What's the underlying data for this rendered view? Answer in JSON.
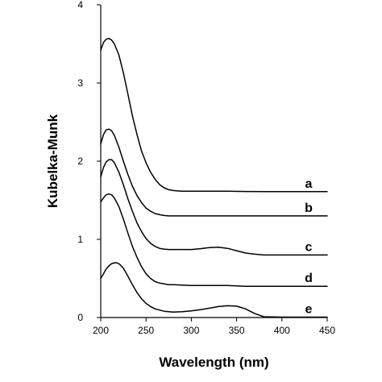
{
  "chart_data": {
    "type": "line",
    "title": "",
    "xlabel": "Wavelength (nm)",
    "ylabel": "Kubelka-Munk",
    "xlim": [
      200,
      450
    ],
    "ylim": [
      0,
      4
    ],
    "x_ticks": [
      200,
      250,
      300,
      350,
      400,
      450
    ],
    "y_ticks": [
      0,
      1,
      2,
      3,
      4
    ],
    "grid": false,
    "legend": "none",
    "series": [
      {
        "label": "a",
        "color": "#000000",
        "x": [
          200,
          203,
          206,
          209,
          212,
          215,
          220,
          225,
          230,
          235,
          240,
          245,
          250,
          255,
          260,
          265,
          270,
          275,
          280,
          285,
          290,
          300,
          320,
          340,
          360,
          380,
          400,
          450
        ],
        "y": [
          3.42,
          3.52,
          3.56,
          3.57,
          3.55,
          3.5,
          3.36,
          3.13,
          2.86,
          2.58,
          2.34,
          2.13,
          1.98,
          1.86,
          1.77,
          1.7,
          1.66,
          1.635,
          1.625,
          1.62,
          1.615,
          1.615,
          1.615,
          1.615,
          1.612,
          1.61,
          1.61,
          1.61
        ]
      },
      {
        "label": "b",
        "color": "#000000",
        "x": [
          200,
          203,
          206,
          209,
          212,
          215,
          220,
          225,
          230,
          235,
          240,
          245,
          250,
          255,
          260,
          265,
          270,
          275,
          280,
          290,
          300,
          350,
          400,
          450
        ],
        "y": [
          2.22,
          2.34,
          2.4,
          2.41,
          2.39,
          2.33,
          2.18,
          2.0,
          1.83,
          1.68,
          1.56,
          1.47,
          1.4,
          1.36,
          1.33,
          1.315,
          1.305,
          1.3,
          1.3,
          1.3,
          1.3,
          1.3,
          1.3,
          1.3
        ]
      },
      {
        "label": "c",
        "color": "#000000",
        "x": [
          200,
          203,
          206,
          209,
          212,
          215,
          220,
          225,
          230,
          235,
          240,
          245,
          250,
          255,
          260,
          265,
          270,
          275,
          280,
          290,
          300,
          310,
          320,
          330,
          340,
          350,
          360,
          370,
          380,
          400,
          450
        ],
        "y": [
          1.8,
          1.92,
          1.99,
          2.02,
          2.02,
          1.98,
          1.86,
          1.7,
          1.52,
          1.36,
          1.21,
          1.1,
          1.01,
          0.95,
          0.91,
          0.885,
          0.875,
          0.87,
          0.87,
          0.87,
          0.87,
          0.88,
          0.895,
          0.9,
          0.885,
          0.855,
          0.825,
          0.81,
          0.8,
          0.8,
          0.8
        ]
      },
      {
        "label": "d",
        "color": "#000000",
        "x": [
          200,
          203,
          206,
          209,
          212,
          215,
          220,
          225,
          230,
          235,
          240,
          245,
          250,
          255,
          260,
          265,
          270,
          275,
          280,
          290,
          300,
          320,
          340,
          360,
          380,
          400,
          450
        ],
        "y": [
          1.48,
          1.53,
          1.57,
          1.58,
          1.57,
          1.53,
          1.42,
          1.26,
          1.08,
          0.91,
          0.77,
          0.65,
          0.56,
          0.5,
          0.46,
          0.44,
          0.43,
          0.42,
          0.42,
          0.415,
          0.41,
          0.41,
          0.41,
          0.4,
          0.4,
          0.4,
          0.4
        ]
      },
      {
        "label": "e",
        "color": "#000000",
        "x": [
          200,
          203,
          206,
          209,
          212,
          215,
          218,
          221,
          225,
          230,
          235,
          240,
          245,
          250,
          255,
          260,
          270,
          280,
          290,
          300,
          310,
          320,
          330,
          340,
          350,
          360,
          370,
          380,
          400,
          450
        ],
        "y": [
          0.5,
          0.56,
          0.62,
          0.66,
          0.69,
          0.7,
          0.7,
          0.68,
          0.63,
          0.53,
          0.42,
          0.32,
          0.24,
          0.18,
          0.14,
          0.11,
          0.08,
          0.07,
          0.075,
          0.085,
          0.1,
          0.12,
          0.14,
          0.15,
          0.145,
          0.11,
          0.05,
          0.01,
          0.005,
          0.005
        ]
      }
    ]
  }
}
